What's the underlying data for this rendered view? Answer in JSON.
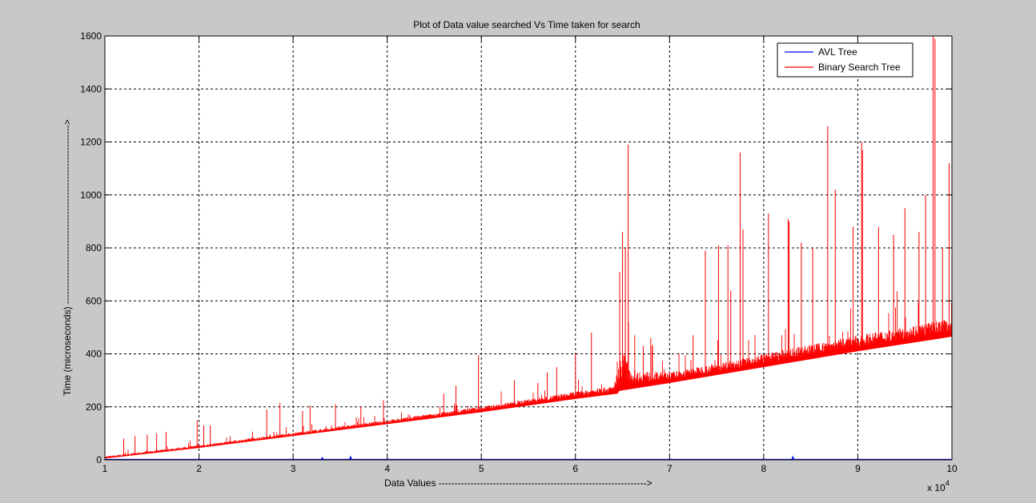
{
  "chart_data": {
    "type": "line",
    "title": "Plot of Data value searched Vs Time taken for search",
    "xlabel": "Data Values ----------------------------------------------------------------->",
    "ylabel": "Time (microseconds) -------------------------------------------------------->",
    "xlim": [
      1,
      10
    ],
    "ylim": [
      0,
      1600
    ],
    "x_multiplier_label": "x 10",
    "x_multiplier_exponent": "4",
    "xticks": [
      "1",
      "2",
      "3",
      "4",
      "5",
      "6",
      "7",
      "8",
      "9",
      "10"
    ],
    "yticks": [
      "0",
      "200",
      "400",
      "600",
      "800",
      "1000",
      "1200",
      "1400",
      "1600"
    ],
    "grid": true,
    "legend_position": "top-right",
    "series": [
      {
        "name": "AVL Tree",
        "color": "#0000ff",
        "x": [
          1.0,
          2.0,
          3.0,
          3.3,
          3.31,
          3.32,
          3.6,
          3.61,
          3.62,
          4.0,
          5.0,
          6.0,
          7.0,
          8.0,
          8.3,
          8.31,
          8.32,
          9.0,
          10.0
        ],
        "y": [
          1,
          1,
          1,
          1,
          7,
          1,
          1,
          10,
          1,
          1,
          1,
          1,
          1,
          1,
          1,
          10,
          1,
          1,
          1
        ]
      },
      {
        "name": "Binary Search Tree",
        "color": "#ff0000",
        "baseline": {
          "x": [
            1.0,
            2.0,
            3.0,
            4.0,
            5.0,
            6.0,
            6.45,
            6.46,
            7.0,
            8.0,
            9.0,
            10.0
          ],
          "y": [
            5,
            45,
            90,
            135,
            180,
            230,
            250,
            260,
            290,
            350,
            410,
            465
          ]
        },
        "band_height": {
          "x": [
            1.0,
            4.0,
            6.4,
            6.5,
            6.6,
            7.0,
            8.0,
            9.0,
            10.0
          ],
          "y": [
            8,
            15,
            30,
            150,
            70,
            40,
            50,
            60,
            70
          ]
        },
        "spikes": [
          {
            "x": 1.2,
            "y": 80
          },
          {
            "x": 1.32,
            "y": 90
          },
          {
            "x": 1.45,
            "y": 95
          },
          {
            "x": 1.55,
            "y": 100
          },
          {
            "x": 1.65,
            "y": 105
          },
          {
            "x": 1.98,
            "y": 150
          },
          {
            "x": 2.05,
            "y": 130
          },
          {
            "x": 2.12,
            "y": 130
          },
          {
            "x": 2.72,
            "y": 190
          },
          {
            "x": 2.86,
            "y": 215
          },
          {
            "x": 3.1,
            "y": 185
          },
          {
            "x": 3.18,
            "y": 205
          },
          {
            "x": 3.45,
            "y": 210
          },
          {
            "x": 3.72,
            "y": 200
          },
          {
            "x": 3.96,
            "y": 225
          },
          {
            "x": 4.6,
            "y": 250
          },
          {
            "x": 4.73,
            "y": 280
          },
          {
            "x": 4.97,
            "y": 395
          },
          {
            "x": 5.35,
            "y": 300
          },
          {
            "x": 5.6,
            "y": 290
          },
          {
            "x": 5.7,
            "y": 330
          },
          {
            "x": 5.8,
            "y": 350
          },
          {
            "x": 6.0,
            "y": 400
          },
          {
            "x": 6.17,
            "y": 480
          },
          {
            "x": 6.47,
            "y": 710
          },
          {
            "x": 6.5,
            "y": 860
          },
          {
            "x": 6.53,
            "y": 800
          },
          {
            "x": 6.56,
            "y": 1190
          },
          {
            "x": 6.63,
            "y": 470
          },
          {
            "x": 6.72,
            "y": 430
          },
          {
            "x": 6.8,
            "y": 460
          },
          {
            "x": 7.25,
            "y": 470
          },
          {
            "x": 7.38,
            "y": 790
          },
          {
            "x": 7.52,
            "y": 810
          },
          {
            "x": 7.62,
            "y": 810
          },
          {
            "x": 7.65,
            "y": 640
          },
          {
            "x": 7.75,
            "y": 1160
          },
          {
            "x": 7.78,
            "y": 870
          },
          {
            "x": 8.05,
            "y": 930
          },
          {
            "x": 8.26,
            "y": 910
          },
          {
            "x": 8.27,
            "y": 900
          },
          {
            "x": 8.4,
            "y": 820
          },
          {
            "x": 8.52,
            "y": 800
          },
          {
            "x": 8.68,
            "y": 1260
          },
          {
            "x": 8.76,
            "y": 1020
          },
          {
            "x": 8.95,
            "y": 880
          },
          {
            "x": 9.04,
            "y": 1200
          },
          {
            "x": 9.05,
            "y": 1170
          },
          {
            "x": 9.22,
            "y": 880
          },
          {
            "x": 9.38,
            "y": 850
          },
          {
            "x": 9.5,
            "y": 950
          },
          {
            "x": 9.65,
            "y": 860
          },
          {
            "x": 9.72,
            "y": 1000
          },
          {
            "x": 9.8,
            "y": 1600
          },
          {
            "x": 9.82,
            "y": 1590
          },
          {
            "x": 9.9,
            "y": 800
          },
          {
            "x": 9.97,
            "y": 1120
          }
        ]
      }
    ]
  }
}
